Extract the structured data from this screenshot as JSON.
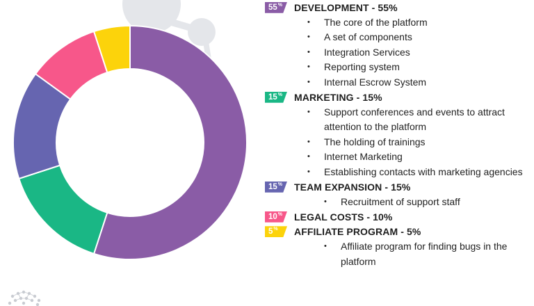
{
  "colors": {
    "development": "#8a5ca6",
    "marketing": "#1ab785",
    "team_expansion": "#6665b0",
    "legal_costs": "#f7578a",
    "affiliate_program": "#fcd30b",
    "decor": "#e4e6ea"
  },
  "icons": {
    "bullet": "•",
    "decor_top": "molecule-decoration",
    "decor_corner": "network-logo-icon"
  },
  "chart_data": {
    "type": "pie",
    "variant": "donut",
    "title": "",
    "start_angle_deg": 0,
    "direction": "clockwise",
    "slices": [
      {
        "label": "DEVELOPMENT",
        "value": 55,
        "color": "#8a5ca6"
      },
      {
        "label": "MARKETING",
        "value": 15,
        "color": "#1ab785"
      },
      {
        "label": "TEAM EXPANSION",
        "value": 15,
        "color": "#6665b0"
      },
      {
        "label": "LEGAL COSTS",
        "value": 10,
        "color": "#f7578a"
      },
      {
        "label": "AFFILIATE PROGRAM",
        "value": 5,
        "color": "#fcd30b"
      }
    ],
    "legend_position": "right"
  },
  "legend": {
    "categories": [
      {
        "key": "development",
        "badge": "55",
        "badge_unit": "%",
        "title": "DEVELOPMENT - 55%",
        "color": "#8a5ca6",
        "indent": "normal",
        "items": [
          "The core of the platform",
          "A set of components",
          "Integration Services",
          "Reporting system",
          "Internal Escrow System"
        ]
      },
      {
        "key": "marketing",
        "badge": "15",
        "badge_unit": "%",
        "title": "MARKETING - 15%",
        "color": "#1ab785",
        "indent": "normal",
        "items": [
          "Support conferences and events to attract attention to the platform",
          "The holding of trainings",
          "Internet Marketing",
          "Establishing contacts with marketing agencies"
        ]
      },
      {
        "key": "team_expansion",
        "badge": "15",
        "badge_unit": "%",
        "title": "TEAM EXPANSION - 15%",
        "color": "#6665b0",
        "indent": "deep",
        "items": [
          "Recruitment of support staff"
        ]
      },
      {
        "key": "legal_costs",
        "badge": "10",
        "badge_unit": "%",
        "title": "LEGAL COSTS - 10%",
        "color": "#f7578a",
        "indent": "normal",
        "items": []
      },
      {
        "key": "affiliate_program",
        "badge": "5",
        "badge_unit": "%",
        "title": "AFFILIATE PROGRAM - 5%",
        "color": "#fcd30b",
        "indent": "deep",
        "items": [
          "Affiliate program for finding bugs in the platform"
        ]
      }
    ]
  }
}
